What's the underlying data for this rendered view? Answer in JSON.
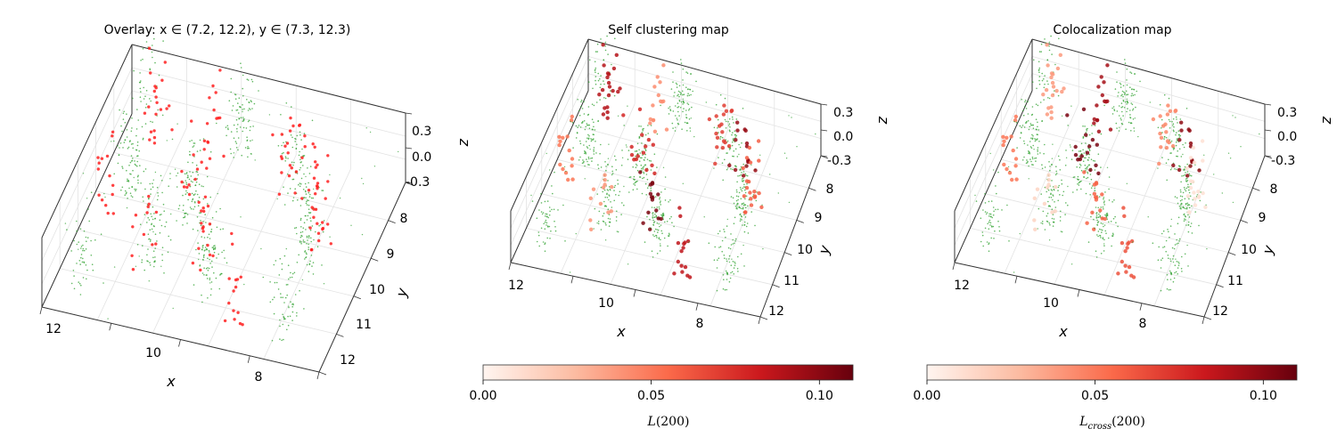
{
  "chart_data": [
    {
      "type": "scatter",
      "title": "Overlay: x ∈ (7.2, 12.2), y ∈ (7.3, 12.3)",
      "xlabel": "x",
      "ylabel": "y",
      "zlabel": "z",
      "x_ticks": [
        "12",
        "10",
        "8"
      ],
      "y_ticks": [
        "8",
        "9",
        "10",
        "11",
        "12"
      ],
      "z_ticks": [
        "0.3",
        "0.0",
        "-0.3"
      ],
      "xlim": [
        7.2,
        12.2
      ],
      "ylim": [
        7.3,
        12.3
      ],
      "zlim": [
        -0.3,
        0.3
      ],
      "colors": {
        "channel_a": "#2ca02c",
        "channel_b": "#ff2020"
      },
      "clusters": [
        {
          "channel": "green",
          "x": 11.9,
          "y": 7.4,
          "n": 30
        },
        {
          "channel": "green",
          "x": 10.1,
          "y": 7.6,
          "n": 45
        },
        {
          "channel": "green",
          "x": 8.9,
          "y": 8.2,
          "n": 35
        },
        {
          "channel": "green",
          "x": 11.6,
          "y": 9.2,
          "n": 45
        },
        {
          "channel": "green",
          "x": 10.4,
          "y": 9.5,
          "n": 50
        },
        {
          "channel": "green",
          "x": 8.2,
          "y": 9.8,
          "n": 50
        },
        {
          "channel": "green",
          "x": 10.7,
          "y": 10.6,
          "n": 40
        },
        {
          "channel": "green",
          "x": 9.6,
          "y": 11.0,
          "n": 45
        },
        {
          "channel": "green",
          "x": 8.0,
          "y": 11.7,
          "n": 30
        },
        {
          "channel": "green",
          "x": 11.7,
          "y": 11.6,
          "n": 25
        },
        {
          "channel": "red",
          "x": 11.6,
          "y": 7.7,
          "n": 20
        },
        {
          "channel": "red",
          "x": 10.6,
          "y": 7.8,
          "n": 15
        },
        {
          "channel": "red",
          "x": 9.1,
          "y": 8.0,
          "n": 18
        },
        {
          "channel": "red",
          "x": 8.5,
          "y": 8.6,
          "n": 15
        },
        {
          "channel": "red",
          "x": 11.8,
          "y": 9.6,
          "n": 15
        },
        {
          "channel": "red",
          "x": 10.5,
          "y": 9.0,
          "n": 15
        },
        {
          "channel": "red",
          "x": 9.9,
          "y": 10.4,
          "n": 15
        },
        {
          "channel": "red",
          "x": 8.1,
          "y": 9.3,
          "n": 20
        },
        {
          "channel": "red",
          "x": 8.9,
          "y": 11.6,
          "n": 15
        },
        {
          "channel": "red",
          "x": 10.8,
          "y": 11.0,
          "n": 12
        }
      ]
    },
    {
      "type": "scatter",
      "title": "Self clustering map",
      "xlabel": "x",
      "ylabel": "y",
      "zlabel": "z",
      "x_ticks": [
        "12",
        "10",
        "8"
      ],
      "y_ticks": [
        "8",
        "9",
        "10",
        "11",
        "12"
      ],
      "z_ticks": [
        "0.3",
        "0.0",
        "-0.3"
      ],
      "xlim": [
        7.2,
        12.2
      ],
      "ylim": [
        7.3,
        12.3
      ],
      "zlim": [
        -0.3,
        0.3
      ],
      "colormap": "Reds",
      "colorbar": {
        "ticks": [
          "0.00",
          "0.05",
          "0.10"
        ],
        "range": [
          0,
          0.11
        ],
        "label_main": "L",
        "label_sub": "",
        "label_arg": "(200)"
      }
    },
    {
      "type": "scatter",
      "title": "Colocalization map",
      "xlabel": "x",
      "ylabel": "y",
      "zlabel": "z",
      "x_ticks": [
        "12",
        "10",
        "8"
      ],
      "y_ticks": [
        "8",
        "9",
        "10",
        "11",
        "12"
      ],
      "z_ticks": [
        "0.3",
        "0.0",
        "-0.3"
      ],
      "xlim": [
        7.2,
        12.2
      ],
      "ylim": [
        7.3,
        12.3
      ],
      "zlim": [
        -0.3,
        0.3
      ],
      "colormap": "Reds",
      "colorbar": {
        "ticks": [
          "0.00",
          "0.05",
          "0.10"
        ],
        "range": [
          0,
          0.11
        ],
        "label_main": "L",
        "label_sub": "cross",
        "label_arg": "(200)"
      }
    }
  ]
}
